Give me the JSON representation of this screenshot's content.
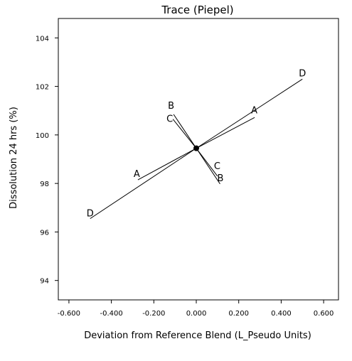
{
  "chart_data": {
    "type": "line",
    "title": "Trace (Piepel)",
    "xlabel": "Deviation from Reference Blend (L_Pseudo Units)",
    "ylabel": "Dissolution 24 hrs (%)",
    "xlim": [
      -0.65,
      0.67
    ],
    "ylim": [
      93.2,
      104.8
    ],
    "xticks": [
      -0.6,
      -0.4,
      -0.2,
      0.0,
      0.2,
      0.4,
      0.6
    ],
    "xtick_labels": [
      "-0.600",
      "-0.400",
      "-0.200",
      "0.000",
      "0.200",
      "0.400",
      "0.600"
    ],
    "yticks": [
      94,
      96,
      98,
      100,
      102,
      104
    ],
    "ytick_labels": [
      "94",
      "96",
      "98",
      "100",
      "102",
      "104"
    ],
    "reference_point": {
      "x": 0.0,
      "y": 99.45
    },
    "series": [
      {
        "name": "A",
        "x": [
          -0.275,
          0.0,
          0.275
        ],
        "y": [
          98.15,
          99.45,
          100.72
        ]
      },
      {
        "name": "B",
        "x": [
          -0.107,
          0.0,
          0.112
        ],
        "y": [
          100.85,
          99.45,
          97.98
        ]
      },
      {
        "name": "C",
        "x": [
          -0.11,
          0.0,
          0.1
        ],
        "y": [
          100.65,
          99.45,
          98.3
        ]
      },
      {
        "name": "D",
        "x": [
          -0.5,
          0.0,
          0.5
        ],
        "y": [
          96.55,
          99.45,
          102.3
        ]
      }
    ],
    "grid": false,
    "legend": "none"
  }
}
